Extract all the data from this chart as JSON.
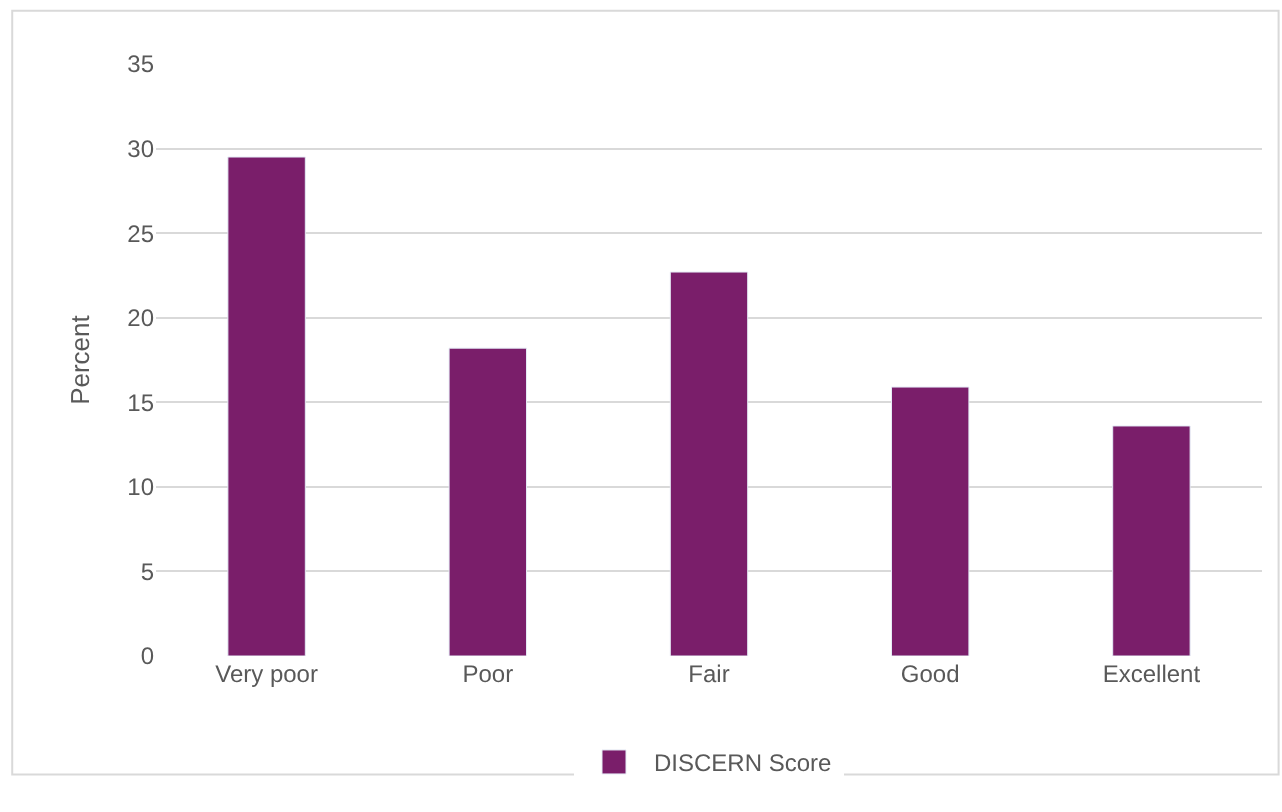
{
  "chart_data": {
    "type": "bar",
    "ylabel": "Percent",
    "categories": [
      "Very poor",
      "Poor",
      "Fair",
      "Good",
      "Excellent"
    ],
    "series": [
      {
        "name": "DISCERN Score",
        "color": "#7a1e6a",
        "values": [
          29.5,
          18.2,
          22.7,
          15.9,
          13.6
        ]
      }
    ],
    "ylim": [
      0,
      35
    ],
    "yticks": [
      0,
      5,
      10,
      15,
      20,
      25,
      30,
      35
    ],
    "grid": "y",
    "legend": "bottom"
  }
}
